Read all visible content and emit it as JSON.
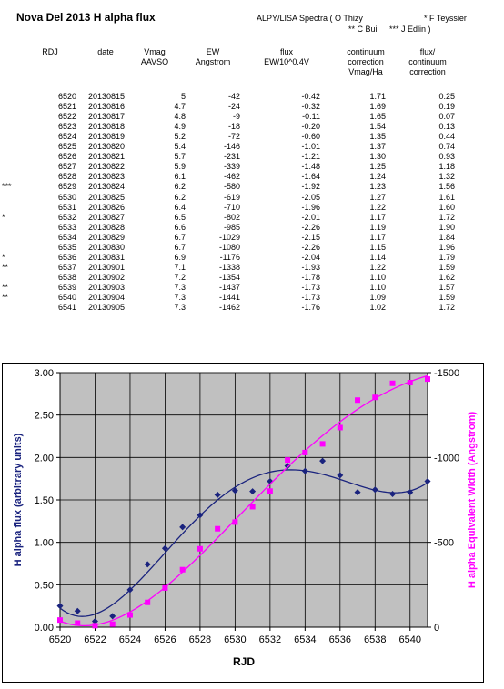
{
  "title": "Nova Del 2013 H alpha flux",
  "credits": {
    "line1a": "ALPY/LISA Spectra  ( O Thizy",
    "line1b": "* F Teyssier",
    "line2a": "** C Buil",
    "line2b": "*** J Edlin  )"
  },
  "table": {
    "headers": [
      {
        "l1": "RDJ",
        "l2": ""
      },
      {
        "l1": "date",
        "l2": ""
      },
      {
        "l1": "Vmag",
        "l2": "AAVSO"
      },
      {
        "l1": "EW",
        "l2": "Angstrom"
      },
      {
        "l1": "flux",
        "l2": "EW/10^0.4V"
      },
      {
        "l1": "continuum",
        "l2": "correction",
        "l3": "Vmag/Ha"
      },
      {
        "l1": "flux/",
        "l2": "continuum",
        "l3": "correction"
      }
    ],
    "rows": [
      [
        "",
        "6520",
        "20130815",
        "5",
        "-42",
        "-0.42",
        "1.71",
        "0.25"
      ],
      [
        "",
        "6521",
        "20130816",
        "4.7",
        "-24",
        "-0.32",
        "1.69",
        "0.19"
      ],
      [
        "",
        "6522",
        "20130817",
        "4.8",
        "-9",
        "-0.11",
        "1.65",
        "0.07"
      ],
      [
        "",
        "6523",
        "20130818",
        "4.9",
        "-18",
        "-0.20",
        "1.54",
        "0.13"
      ],
      [
        "",
        "6524",
        "20130819",
        "5.2",
        "-72",
        "-0.60",
        "1.35",
        "0.44"
      ],
      [
        "",
        "6525",
        "20130820",
        "5.4",
        "-146",
        "-1.01",
        "1.37",
        "0.74"
      ],
      [
        "",
        "6526",
        "20130821",
        "5.7",
        "-231",
        "-1.21",
        "1.30",
        "0.93"
      ],
      [
        "",
        "6527",
        "20130822",
        "5.9",
        "-339",
        "-1.48",
        "1.25",
        "1.18"
      ],
      [
        "",
        "6528",
        "20130823",
        "6.1",
        "-462",
        "-1.64",
        "1.24",
        "1.32"
      ],
      [
        "***",
        "6529",
        "20130824",
        "6.2",
        "-580",
        "-1.92",
        "1.23",
        "1.56"
      ],
      [
        "",
        "6530",
        "20130825",
        "6.2",
        "-619",
        "-2.05",
        "1.27",
        "1.61"
      ],
      [
        "",
        "6531",
        "20130826",
        "6.4",
        "-710",
        "-1.96",
        "1.22",
        "1.60"
      ],
      [
        "*",
        "6532",
        "20130827",
        "6.5",
        "-802",
        "-2.01",
        "1.17",
        "1.72"
      ],
      [
        "",
        "6533",
        "20130828",
        "6.6",
        "-985",
        "-2.26",
        "1.19",
        "1.90"
      ],
      [
        "",
        "6534",
        "20130829",
        "6.7",
        "-1029",
        "-2.15",
        "1.17",
        "1.84"
      ],
      [
        "",
        "6535",
        "20130830",
        "6.7",
        "-1080",
        "-2.26",
        "1.15",
        "1.96"
      ],
      [
        "*",
        "6536",
        "20130831",
        "6.9",
        "-1176",
        "-2.04",
        "1.14",
        "1.79"
      ],
      [
        "**",
        "6537",
        "20130901",
        "7.1",
        "-1338",
        "-1.93",
        "1.22",
        "1.59"
      ],
      [
        "",
        "6538",
        "20130902",
        "7.2",
        "-1354",
        "-1.78",
        "1.10",
        "1.62"
      ],
      [
        "**",
        "6539",
        "20130903",
        "7.3",
        "-1437",
        "-1.73",
        "1.10",
        "1.57"
      ],
      [
        "**",
        "6540",
        "20130904",
        "7.3",
        "-1441",
        "-1.73",
        "1.09",
        "1.59"
      ],
      [
        "",
        "6541",
        "20130905",
        "7.3",
        "-1462",
        "-1.76",
        "1.02",
        "1.72"
      ]
    ]
  },
  "chart_data": {
    "type": "scatter",
    "xlabel": "RJD",
    "ylabel": "H alpha  flux  (arbitrary units)",
    "y2label": "H alpha Equivalent Width  (Angstrom)",
    "xlim": [
      6520,
      6541
    ],
    "ylim": [
      0,
      3.0
    ],
    "y2lim": [
      0,
      -1500
    ],
    "y2_inverted": true,
    "x_ticks": [
      6520,
      6522,
      6524,
      6526,
      6528,
      6530,
      6532,
      6534,
      6536,
      6538,
      6540
    ],
    "y_ticks": [
      "0.00",
      "0.50",
      "1.00",
      "1.50",
      "2.00",
      "2.50",
      "3.00"
    ],
    "y2_ticks": [
      "0",
      "-500",
      "-1000",
      "-1500"
    ],
    "grid": true,
    "plot_background": "#c0c0c0",
    "series": [
      {
        "axis": "left",
        "color": "#1a237e",
        "marker": "diamond",
        "trendline": "polynomial",
        "x": [
          6520,
          6521,
          6522,
          6523,
          6524,
          6525,
          6526,
          6527,
          6528,
          6529,
          6530,
          6531,
          6532,
          6533,
          6534,
          6535,
          6536,
          6537,
          6538,
          6539,
          6540,
          6541
        ],
        "y": [
          0.25,
          0.19,
          0.07,
          0.13,
          0.44,
          0.74,
          0.93,
          1.18,
          1.32,
          1.56,
          1.61,
          1.6,
          1.72,
          1.9,
          1.84,
          1.96,
          1.79,
          1.59,
          1.62,
          1.57,
          1.59,
          1.72
        ]
      },
      {
        "axis": "right",
        "color": "#ff00ff",
        "marker": "square",
        "trendline": "polynomial",
        "x": [
          6520,
          6521,
          6522,
          6523,
          6524,
          6525,
          6526,
          6527,
          6528,
          6529,
          6530,
          6531,
          6532,
          6533,
          6534,
          6535,
          6536,
          6537,
          6538,
          6539,
          6540,
          6541
        ],
        "y": [
          -42,
          -24,
          -9,
          -18,
          -72,
          -146,
          -231,
          -339,
          -462,
          -580,
          -619,
          -710,
          -802,
          -985,
          -1029,
          -1080,
          -1176,
          -1338,
          -1354,
          -1437,
          -1441,
          -1462
        ]
      }
    ]
  }
}
